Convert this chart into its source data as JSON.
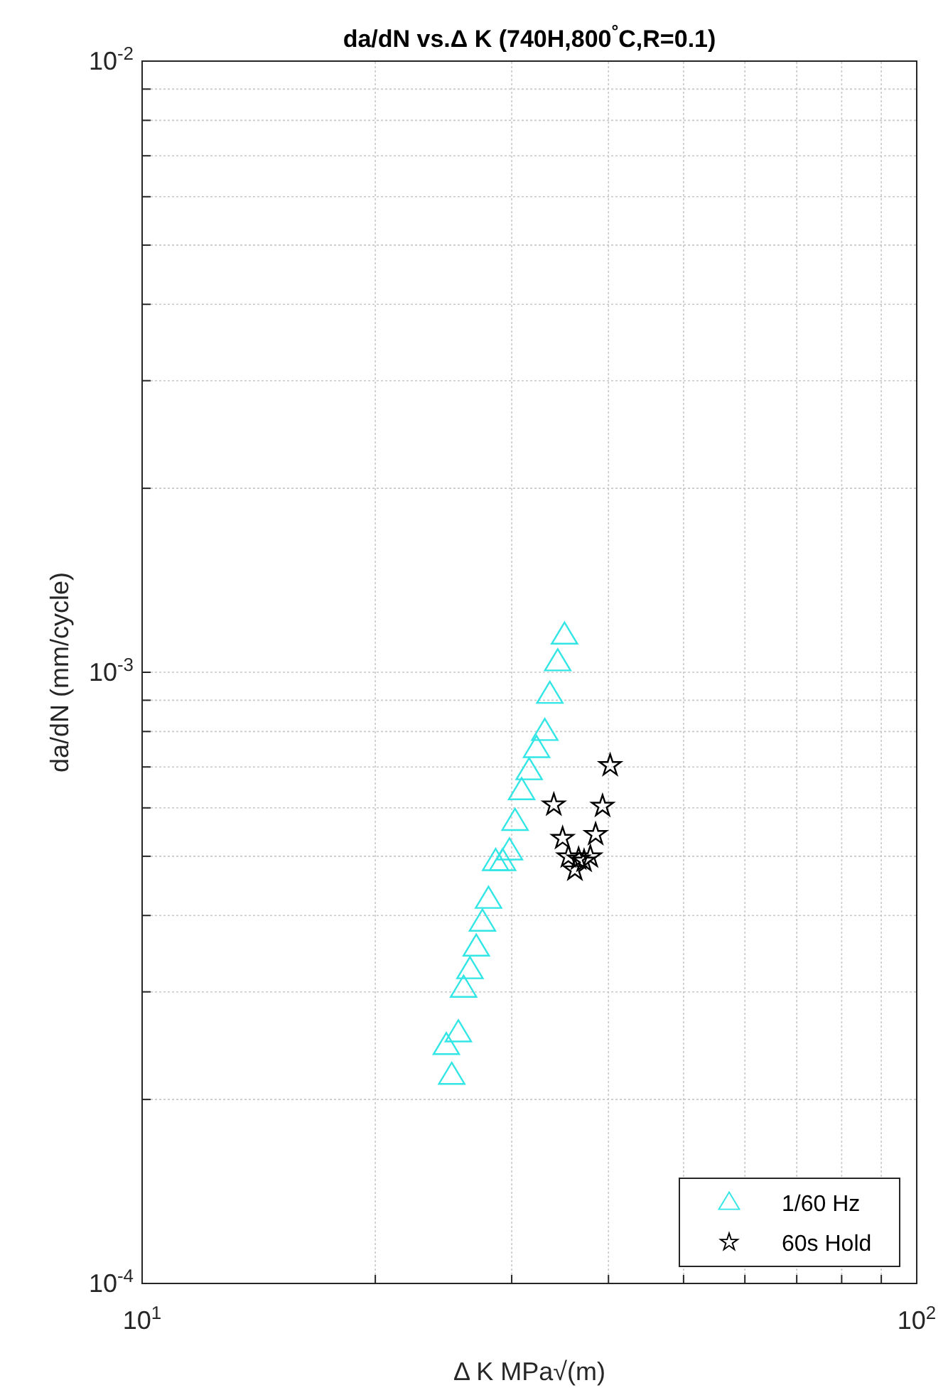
{
  "chart_data": {
    "type": "scatter",
    "title": "da/dN vs.Δ K (740H,800$^{°}$C,R=0.1)",
    "xlabel": "Δ K MPa√(m)",
    "ylabel": "da/dN (mm/cycle)",
    "log": "xy",
    "grid": true,
    "legend": "bottom right",
    "xlim": [
      10,
      100
    ],
    "ylim": [
      0.0001,
      0.01
    ],
    "xticks": [
      {
        "value": 10,
        "label": "10$^{1}$"
      },
      {
        "value": 20,
        "label": null
      },
      {
        "value": 30,
        "label": null
      },
      {
        "value": 40,
        "label": null
      },
      {
        "value": 50,
        "label": null
      },
      {
        "value": 60,
        "label": null
      },
      {
        "value": 70,
        "label": null
      },
      {
        "value": 80,
        "label": null
      },
      {
        "value": 90,
        "label": null
      },
      {
        "value": 100,
        "label": "10$^{2}$"
      }
    ],
    "yticks": [
      {
        "value": 0.0001,
        "label": "10$^{-4}$"
      },
      {
        "value": 0.0002,
        "label": null
      },
      {
        "value": 0.0003,
        "label": null
      },
      {
        "value": 0.0004,
        "label": null
      },
      {
        "value": 0.0005,
        "label": null
      },
      {
        "value": 0.0006,
        "label": null
      },
      {
        "value": 0.0007,
        "label": null
      },
      {
        "value": 0.0008,
        "label": null
      },
      {
        "value": 0.0009,
        "label": null
      },
      {
        "value": 0.001,
        "label": "10$^{-3}$"
      },
      {
        "value": 0.002,
        "label": null
      },
      {
        "value": 0.003,
        "label": null
      },
      {
        "value": 0.004,
        "label": null
      },
      {
        "value": 0.005,
        "label": null
      },
      {
        "value": 0.006,
        "label": null
      },
      {
        "value": 0.007,
        "label": null
      },
      {
        "value": 0.008,
        "label": null
      },
      {
        "value": 0.009,
        "label": null
      },
      {
        "value": 0.01,
        "label": "10$^{-2}$"
      }
    ],
    "series": [
      {
        "name": "1/60 Hz",
        "color": "#33e6e6",
        "marker": "triangle",
        "x": [
          35.1,
          34.4,
          33.6,
          33.1,
          32.3,
          31.6,
          30.9,
          30.3,
          29.8,
          29.2,
          28.6,
          28.0,
          27.5,
          27.0,
          26.5,
          26.0,
          25.6,
          24.7,
          25.1
        ],
        "values": [
          0.00115,
          0.00104,
          0.00092,
          0.0008,
          0.00075,
          0.00069,
          0.00064,
          0.00057,
          0.00051,
          0.00049,
          0.00049,
          0.000425,
          0.00039,
          0.000355,
          0.000326,
          0.000304,
          0.000257,
          0.000245,
          0.000219
        ]
      },
      {
        "name": "60s Hold",
        "color": "#000000",
        "marker": "star",
        "x": [
          40.2,
          34.0,
          39.3,
          38.5,
          34.9,
          37.9,
          35.5,
          36.6,
          37.2,
          36.2
        ],
        "values": [
          0.000704,
          0.000607,
          0.000604,
          0.000543,
          0.000535,
          0.000499,
          0.000499,
          0.000495,
          0.000491,
          0.000475
        ]
      }
    ]
  }
}
